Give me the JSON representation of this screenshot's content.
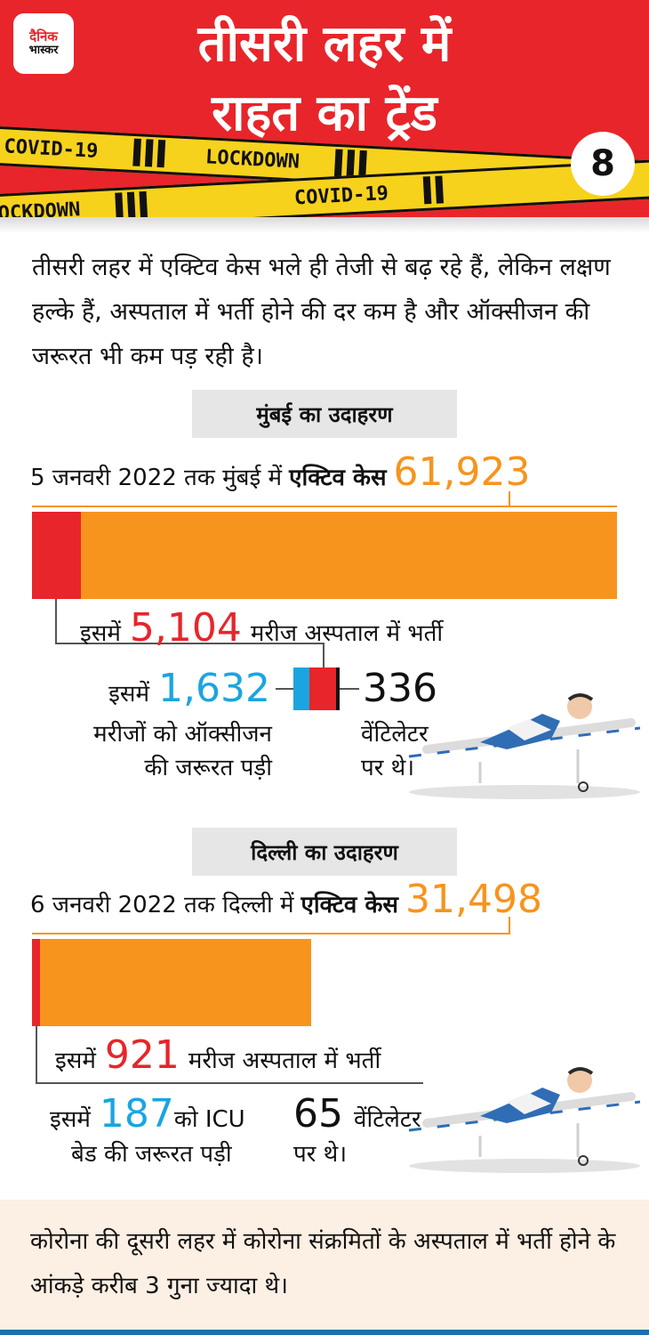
{
  "header": {
    "logo_line1": "दैनिक",
    "logo_line2": "भास्कर",
    "title_line1": "तीसरी लहर में",
    "title_line2": "राहत का ट्रेंड",
    "number": "8",
    "tape_words": [
      "COVID-19",
      "LOCKDOWN",
      "COVID-19",
      "LOCKDOWN"
    ],
    "colors": {
      "red": "#e8252a",
      "tape": "#f6d21c"
    }
  },
  "intro": "तीसरी लहर में एक्टिव केस भले ही तेजी से बढ़ रहे हैं, लेकिन लक्षण हल्के हैं, अस्पताल में भर्ती होने की दर कम है और ऑक्सीजन की जरूरत भी कम पड़ रही है।",
  "mumbai": {
    "label": "मुंबई का उदाहरण",
    "active_prefix": "5 जनवरी 2022 तक मुंबई में",
    "active_bold": "एक्टिव केस",
    "active_value": "61,923",
    "hosp_prefix": "इसमें",
    "hosp_value": "5,104",
    "hosp_suffix": "मरीज अस्पताल में भर्ती",
    "oxy_prefix": "इसमें",
    "oxy_value": "1,632",
    "oxy_desc_line1": "मरीजों को ऑक्सीजन",
    "oxy_desc_line2": "की जरूरत पड़ी",
    "vent_value": "336",
    "vent_desc_line1": "वेंटिलेटर",
    "vent_desc_line2": "पर थे।"
  },
  "delhi": {
    "label": "दिल्ली का उदाहरण",
    "active_prefix": "6 जनवरी 2022 तक दिल्ली में",
    "active_bold": "एक्टिव केस",
    "active_value": "31,498",
    "hosp_prefix": "इसमें",
    "hosp_value": "921",
    "hosp_suffix": "मरीज अस्पताल में भर्ती",
    "icu_prefix": "इसमें",
    "icu_value": "187",
    "icu_suffix": "को ICU",
    "icu_desc": "बेड की जरूरत पड़ी",
    "vent_value": "65",
    "vent_suffix": "वेंटिलेटर",
    "vent_desc": "पर थे।"
  },
  "footer": "कोरोना की दूसरी लहर में कोरोना संक्रमितों के अस्पताल में भर्ती होने के आंकड़े करीब 3 गुना ज्यादा थे।"
}
